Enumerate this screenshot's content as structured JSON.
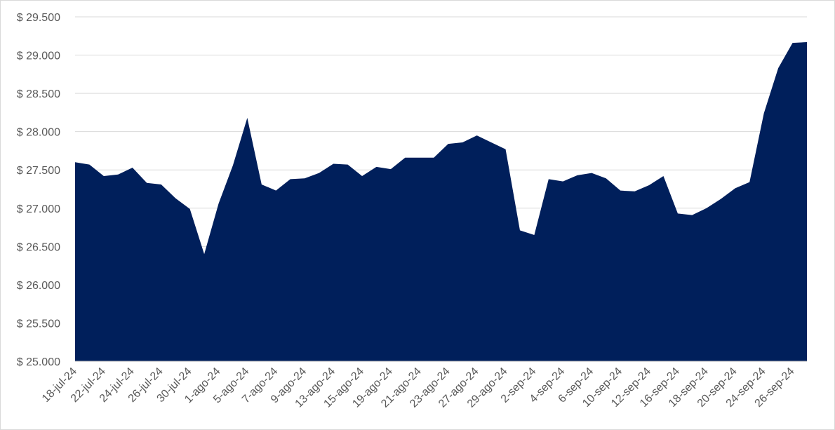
{
  "chart_data": {
    "type": "area",
    "title": "",
    "xlabel": "",
    "ylabel": "",
    "ylim": [
      25000,
      29500
    ],
    "y_ticks": [
      25000,
      25500,
      26000,
      26500,
      27000,
      27500,
      28000,
      28500,
      29000,
      29500
    ],
    "y_tick_labels": [
      "$ 25.000",
      "$ 25.500",
      "$ 26.000",
      "$ 26.500",
      "$ 27.000",
      "$ 27.500",
      "$ 28.000",
      "$ 28.500",
      "$ 29.000",
      "$ 29.500"
    ],
    "grid": true,
    "legend": "none",
    "fill_color": "#001F5B",
    "x_tick_labels": [
      "18-jul-24",
      "22-jul-24",
      "24-jul-24",
      "26-jul-24",
      "30-jul-24",
      "1-ago-24",
      "5-ago-24",
      "7-ago-24",
      "9-ago-24",
      "13-ago-24",
      "15-ago-24",
      "19-ago-24",
      "21-ago-24",
      "23-ago-24",
      "27-ago-24",
      "29-ago-24",
      "2-sep-24",
      "4-sep-24",
      "6-sep-24",
      "10-sep-24",
      "12-sep-24",
      "16-sep-24",
      "18-sep-24",
      "20-sep-24",
      "24-sep-24",
      "26-sep-24"
    ],
    "x_tick_positions": [
      0,
      2,
      4,
      6,
      8,
      10,
      12,
      14,
      16,
      18,
      20,
      22,
      24,
      26,
      28,
      30,
      32,
      34,
      36,
      38,
      40,
      42,
      44,
      46,
      48,
      50
    ],
    "values": [
      27600,
      27570,
      27420,
      27440,
      27530,
      27330,
      27310,
      27130,
      26990,
      26400,
      27060,
      27560,
      28180,
      27310,
      27230,
      27380,
      27390,
      27460,
      27580,
      27570,
      27420,
      27540,
      27510,
      27660,
      27660,
      27660,
      27840,
      27860,
      27950,
      27860,
      27770,
      26710,
      26650,
      27380,
      27350,
      27430,
      27460,
      27390,
      27230,
      27220,
      27300,
      27420,
      26930,
      26910,
      27000,
      27120,
      27260,
      27340,
      28240,
      28830,
      29160,
      29170
    ]
  }
}
